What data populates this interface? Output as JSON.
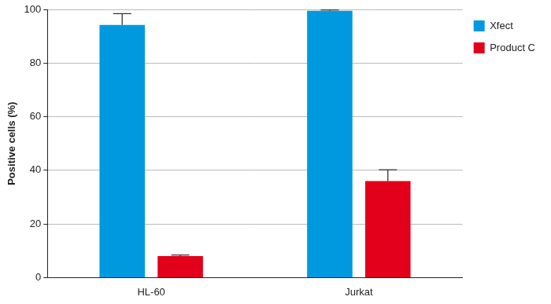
{
  "chart_data": {
    "type": "bar",
    "categories": [
      "HL-60",
      "Jurkat"
    ],
    "series": [
      {
        "name": "Xfect",
        "color": "#0099df",
        "values": [
          94.2,
          99.5
        ],
        "errors": [
          4.2,
          0.3
        ]
      },
      {
        "name": "Product C",
        "color": "#e2001a",
        "values": [
          8.0,
          36.0
        ],
        "errors": [
          0.4,
          4.2
        ]
      }
    ],
    "y_label": "Positive cells (%)",
    "ylim": [
      0,
      100
    ],
    "yticks": [
      0,
      20,
      40,
      60,
      80,
      100
    ],
    "grid": true,
    "legend": "top right"
  }
}
